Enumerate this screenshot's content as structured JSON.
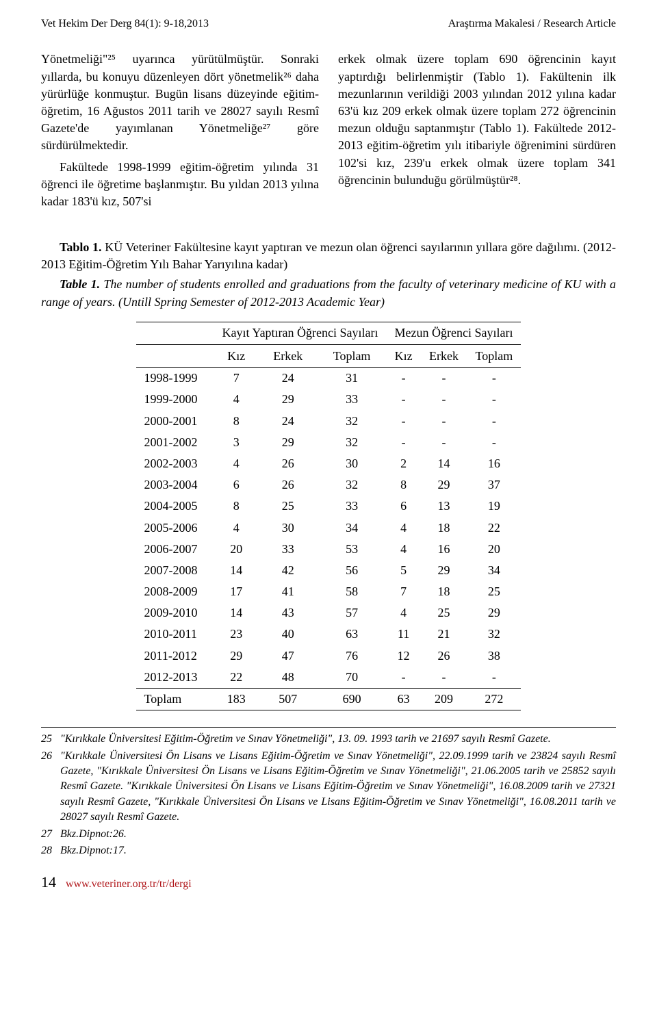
{
  "header": {
    "left": "Vet Hekim Der Derg 84(1): 9-18,2013",
    "right_dark": "Araştırma Makalesi / ",
    "right_grey": "Research Article"
  },
  "body": {
    "col1_p1": "Yönetmeliği\"²⁵ uyarınca yürütülmüştür. Sonraki yıllarda, bu konuyu düzenleyen dört yönetmelik²⁶ daha yürürlüğe konmuştur. Bugün lisans düzeyinde eğitim-öğretim, 16 Ağustos 2011 tarih ve 28027 sayılı Resmî Gazete'de yayımlanan Yönetmeliğe²⁷ göre sürdürülmektedir.",
    "col1_p2": "Fakültede 1998-1999 eğitim-öğretim yılında 31 öğrenci ile öğretime başlanmıştır. Bu yıldan 2013 yılına kadar 183'ü kız, 507'si",
    "col2_p1": "erkek olmak üzere toplam 690 öğrencinin kayıt yaptırdığı belirlenmiştir (Tablo 1). Fakültenin ilk mezunlarının verildiği 2003 yılından 2012 yılına kadar 63'ü kız 209 erkek olmak üzere toplam 272 öğrencinin mezun olduğu saptanmıştır (Tablo 1). Fakültede 2012-2013 eğitim-öğretim yılı itibariyle öğrenimini sürdüren 102'si kız, 239'u erkek olmak üzere toplam 341 öğrencinin bulunduğu görülmüştür²⁸."
  },
  "captions": {
    "tr_bold": "Tablo 1.",
    "tr_text": " KÜ Veteriner Fakültesine kayıt yaptıran ve mezun olan öğrenci sayılarının yıllara göre dağılımı. (2012-2013 Eğitim-Öğretim Yılı Bahar Yarıyılına kadar)",
    "en_bold": "Table 1.",
    "en_text": " The number of students enrolled and graduations from the faculty of veterinary medicine of KU with a range of years.  (Untill Spring Semester  of 2012-2013 Academic Year)"
  },
  "table": {
    "group1": "Kayıt Yaptıran Öğrenci Sayıları",
    "group2": "Mezun Öğrenci Sayıları",
    "sub": [
      "Kız",
      "Erkek",
      "Toplam",
      "Kız",
      "Erkek",
      "Toplam"
    ],
    "rows": [
      [
        "1998-1999",
        "7",
        "24",
        "31",
        "-",
        "-",
        "-"
      ],
      [
        "1999-2000",
        "4",
        "29",
        "33",
        "-",
        "-",
        "-"
      ],
      [
        "2000-2001",
        "8",
        "24",
        "32",
        "-",
        "-",
        "-"
      ],
      [
        "2001-2002",
        "3",
        "29",
        "32",
        "-",
        "-",
        "-"
      ],
      [
        "2002-2003",
        "4",
        "26",
        "30",
        "2",
        "14",
        "16"
      ],
      [
        "2003-2004",
        "6",
        "26",
        "32",
        "8",
        "29",
        "37"
      ],
      [
        "2004-2005",
        "8",
        "25",
        "33",
        "6",
        "13",
        "19"
      ],
      [
        "2005-2006",
        "4",
        "30",
        "34",
        "4",
        "18",
        "22"
      ],
      [
        "2006-2007",
        "20",
        "33",
        "53",
        "4",
        "16",
        "20"
      ],
      [
        "2007-2008",
        "14",
        "42",
        "56",
        "5",
        "29",
        "34"
      ],
      [
        "2008-2009",
        "17",
        "41",
        "58",
        "7",
        "18",
        "25"
      ],
      [
        "2009-2010",
        "14",
        "43",
        "57",
        "4",
        "25",
        "29"
      ],
      [
        "2010-2011",
        "23",
        "40",
        "63",
        "11",
        "21",
        "32"
      ],
      [
        "2011-2012",
        "29",
        "47",
        "76",
        "12",
        "26",
        "38"
      ],
      [
        "2012-2013",
        "22",
        "48",
        "70",
        "-",
        "-",
        "-"
      ]
    ],
    "total": [
      "Toplam",
      "183",
      "507",
      "690",
      "63",
      "209",
      "272"
    ]
  },
  "footnotes": {
    "f25n": "25",
    "f25": "\"Kırıkkale Üniversitesi Eğitim-Öğretim ve Sınav Yönetmeliği\", 13. 09. 1993 tarih ve 21697 sayılı Resmî Gazete.",
    "f26n": "26",
    "f26": "\"Kırıkkale Üniversitesi Ön Lisans ve Lisans Eğitim-Öğretim ve Sınav Yönetmeliği\", 22.09.1999 tarih ve 23824 sayılı Resmî Gazete, \"Kırıkkale Üniversitesi Ön Lisans ve Lisans Eğitim-Öğretim ve Sınav Yönetmeliği\", 21.06.2005 tarih ve 25852 sayılı Resmî Gazete. \"Kırıkkale Üniversitesi Ön Lisans ve Lisans Eğitim-Öğretim ve Sınav Yönetmeliği\", 16.08.2009 tarih ve 27321 sayılı Resmî Gazete, \"Kırıkkale Üniversitesi Ön Lisans ve Lisans Eğitim-Öğretim ve Sınav Yönetmeliği\", 16.08.2011 tarih ve 28027 sayılı Resmî Gazete.",
    "f27n": "27",
    "f27": "Bkz.Dipnot:26.",
    "f28n": "28",
    "f28": "Bkz.Dipnot:17."
  },
  "footer": {
    "page": "14",
    "url": "www.veteriner.org.tr/tr/dergi"
  }
}
